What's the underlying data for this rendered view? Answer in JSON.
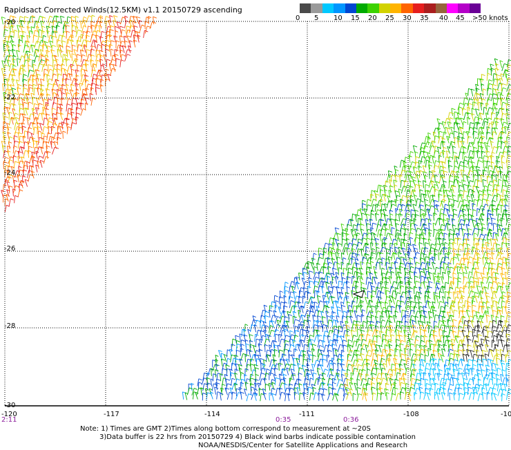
{
  "title": "Rapidsact Corrected Winds(12.5KM) v1.1 20150729 ascending",
  "colorbar": {
    "colors": [
      "#4a4a4a",
      "#9a9a9a",
      "#00c8ff",
      "#0096ff",
      "#0046d2",
      "#00aa00",
      "#3cd200",
      "#d2d200",
      "#ffb400",
      "#ff6400",
      "#e61e1e",
      "#aa1e1e",
      "#96643c",
      "#ff00ff",
      "#b400c8",
      "#6a0096"
    ],
    "labels": [
      "0",
      "5",
      "10",
      "15",
      "20",
      "25",
      "30",
      "35",
      "40",
      "45",
      ">50 knots"
    ]
  },
  "map": {
    "lat_labels": [
      "-20",
      "-22",
      "-24",
      "-26",
      "-28",
      "-30"
    ],
    "lon_labels": [
      "-120",
      "-117",
      "-114",
      "-111",
      "-108",
      "-10"
    ],
    "time_labels": [
      "2:11",
      "0:35",
      "0:36"
    ]
  },
  "notes": {
    "line1": "Note: 1) Times are GMT 2)Times along bottom correspond to measurement at ~20S",
    "line2": "3)Data buffer is 22 hrs from 20150729 4) Black wind barbs indicate possible contamination",
    "line3": "NOAA/NESDIS/Center for Satellite Applications and Research"
  }
}
